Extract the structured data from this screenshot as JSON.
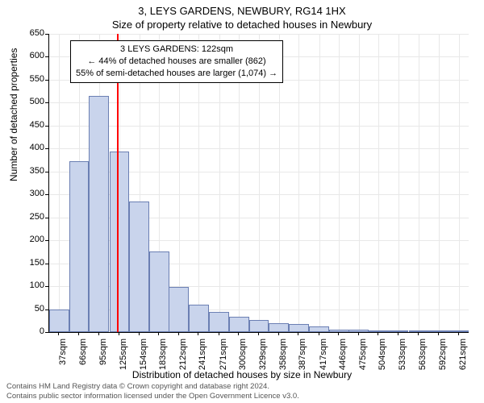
{
  "title_main": "3, LEYS GARDENS, NEWBURY, RG14 1HX",
  "title_sub": "Size of property relative to detached houses in Newbury",
  "y_axis_title": "Number of detached properties",
  "x_axis_title": "Distribution of detached houses by size in Newbury",
  "chart": {
    "type": "histogram",
    "background_color": "#ffffff",
    "grid_color": "#e8e8e8",
    "axis_color": "#000000",
    "bar_fill": "#c9d4ec",
    "bar_border": "#6b7fb3",
    "marker_color": "#ff0000",
    "marker_x_value": 122,
    "ylim": [
      0,
      650
    ],
    "ytick_step": 50,
    "y_ticks": [
      0,
      50,
      100,
      150,
      200,
      250,
      300,
      350,
      400,
      450,
      500,
      550,
      600,
      650
    ],
    "x_min": 22.5,
    "x_max": 635.5,
    "x_tick_values": [
      37,
      66,
      95,
      125,
      154,
      183,
      212,
      241,
      271,
      300,
      329,
      358,
      387,
      417,
      446,
      475,
      504,
      533,
      563,
      592,
      621
    ],
    "x_tick_labels": [
      "37sqm",
      "66sqm",
      "95sqm",
      "125sqm",
      "154sqm",
      "183sqm",
      "212sqm",
      "241sqm",
      "271sqm",
      "300sqm",
      "329sqm",
      "358sqm",
      "387sqm",
      "417sqm",
      "446sqm",
      "475sqm",
      "504sqm",
      "533sqm",
      "563sqm",
      "592sqm",
      "621sqm"
    ],
    "categories_sqm": [
      37,
      66,
      95,
      125,
      154,
      183,
      212,
      241,
      271,
      300,
      329,
      358,
      387,
      417,
      446,
      475,
      504,
      533,
      563,
      592,
      621
    ],
    "values": [
      50,
      372,
      514,
      394,
      284,
      175,
      98,
      60,
      44,
      34,
      26,
      20,
      18,
      12,
      6,
      6,
      4,
      4,
      4,
      2,
      2
    ],
    "bar_width_value": 29.2,
    "label_fontsize": 11,
    "title_fontsize": 13
  },
  "annotation": {
    "line1": "3 LEYS GARDENS: 122sqm",
    "line2": "← 44% of detached houses are smaller (862)",
    "line3": "55% of semi-detached houses are larger (1,074) →"
  },
  "footer": {
    "line1": "Contains HM Land Registry data © Crown copyright and database right 2024.",
    "line2": "Contains public sector information licensed under the Open Government Licence v3.0."
  }
}
